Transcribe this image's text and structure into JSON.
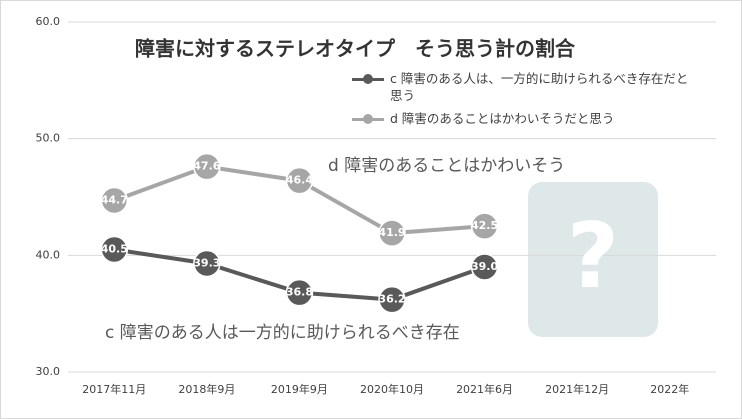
{
  "chart_data": {
    "type": "line",
    "title": "障害に対するステレオタイプ　そう思う計の割合",
    "categories": [
      "2017年11月",
      "2018年9月",
      "2019年9月",
      "2020年10月",
      "2021年6月",
      "2021年12月",
      "2022年"
    ],
    "series": [
      {
        "name": "c 障害のある人は、一方的に助けられるべき存在だと思う",
        "color": "#595959",
        "values": [
          40.5,
          39.3,
          36.8,
          36.2,
          39.0,
          null,
          null
        ],
        "value_labels": [
          "40.5",
          "39.3",
          "36.8",
          "36.2",
          "39.0",
          null,
          null
        ]
      },
      {
        "name": "d 障害のあることはかわいそうだと思う",
        "color": "#a6a6a6",
        "values": [
          44.7,
          47.6,
          46.4,
          41.9,
          42.5,
          null,
          null
        ],
        "value_labels": [
          "44.7",
          "47.6",
          "46.4",
          "41.9",
          "42.5",
          null,
          null
        ]
      }
    ],
    "ylim": [
      30,
      60
    ],
    "yticks": [
      {
        "value": 30,
        "label": "30.0"
      },
      {
        "value": 40,
        "label": "40.0"
      },
      {
        "value": 50,
        "label": "50.0"
      },
      {
        "value": 60,
        "label": "60.0"
      }
    ],
    "grid": true,
    "legend": "top-right",
    "annotations": [
      {
        "text": "d 障害のあることはかわいそう"
      },
      {
        "text": "c 障害のある人は一方的に助けられるべき存在"
      },
      {
        "text": "?"
      }
    ]
  }
}
